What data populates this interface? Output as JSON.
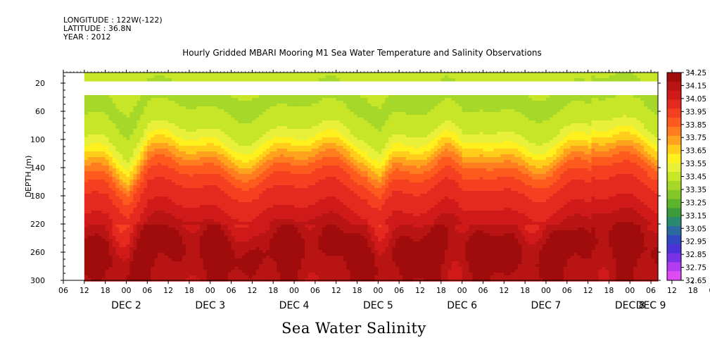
{
  "header": {
    "longitude": "LONGITUDE : 122W(-122)",
    "latitude": "LATITUDE : 36.8N",
    "year": "YEAR : 2012"
  },
  "caption": "Sea Water Salinity",
  "chart_data": {
    "type": "heatmap",
    "title": "Hourly Gridded MBARI Mooring M1 Sea Water Temperature and Salinity Observations",
    "ylabel": "DEPTH (m)",
    "xlabel": "",
    "y_range": [
      300,
      5
    ],
    "y_reversed": true,
    "y_ticks": [
      20,
      60,
      100,
      140,
      180,
      220,
      260,
      300
    ],
    "x_range_hours": [
      0,
      170
    ],
    "x_ticks": [
      "06",
      "12",
      "18",
      "00",
      "06",
      "12",
      "18",
      "00",
      "06",
      "12",
      "18",
      "00",
      "06",
      "12",
      "18",
      "00",
      "06",
      "12",
      "18",
      "00",
      "06",
      "12",
      "18",
      "00",
      "06",
      "12",
      "18",
      "00",
      "06",
      "12",
      "18",
      "00",
      "06"
    ],
    "x_day_labels": [
      {
        "label": "DEC  2",
        "hour": 18
      },
      {
        "label": "DEC  3",
        "hour": 42
      },
      {
        "label": "DEC  4",
        "hour": 66
      },
      {
        "label": "DEC  5",
        "hour": 90
      },
      {
        "label": "DEC  6",
        "hour": 114
      },
      {
        "label": "DEC  7",
        "hour": 138
      },
      {
        "label": "DEC  8",
        "hour": 162
      },
      {
        "label": "DEC  9",
        "hour": 168
      }
    ],
    "data_start_hour": 6,
    "missing_depth_band": [
      20,
      35
    ],
    "colorbar": {
      "levels": [
        "34.25",
        "34.15",
        "34.05",
        "33.95",
        "33.85",
        "33.75",
        "33.65",
        "33.55",
        "33.45",
        "33.35",
        "33.25",
        "33.15",
        "33.05",
        "32.95",
        "32.85",
        "32.75",
        "32.65"
      ],
      "colors": [
        "#a00c0c",
        "#b81414",
        "#d01a1a",
        "#e42a1e",
        "#f44020",
        "#ff5a1e",
        "#ff7d20",
        "#ffa31e",
        "#ffcd1a",
        "#fff01e",
        "#e8f03a",
        "#c8e628",
        "#a5d828",
        "#84c828",
        "#5cb42c",
        "#3c9c3c",
        "#2a8a70",
        "#2a6aa0",
        "#3048c0",
        "#4a32d8",
        "#7a32e6",
        "#b43cf0",
        "#e04cf4"
      ],
      "range": [
        32.65,
        34.25
      ]
    },
    "profile_depths": [
      5,
      20,
      40,
      60,
      80,
      100,
      120,
      140,
      160,
      180,
      200,
      220,
      240,
      260,
      280,
      300
    ],
    "profile_salinity": [
      33.42,
      33.42,
      33.4,
      33.42,
      33.45,
      33.55,
      33.7,
      33.85,
      33.95,
      34.0,
      34.05,
      34.12,
      34.2,
      34.22,
      34.18,
      34.15
    ]
  }
}
